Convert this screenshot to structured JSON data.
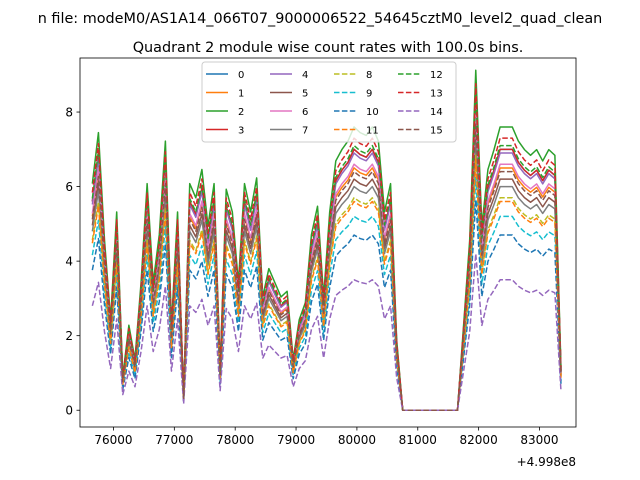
{
  "chart_data": {
    "type": "line",
    "suptitle": "n file: modeM0/AS1A14_066T07_9000006522_54645cztM0_level2_quad_clean",
    "title": "Quadrant 2 module wise count rates with 100.0s bins.",
    "xlabel": "",
    "ylabel": "",
    "x_offset_label": "+4.998e8",
    "xlim": [
      75450,
      83600
    ],
    "ylim": [
      -0.45,
      9.45
    ],
    "xticks": [
      76000,
      77000,
      78000,
      79000,
      80000,
      81000,
      82000,
      83000
    ],
    "xtick_labels": [
      "76000",
      "77000",
      "78000",
      "79000",
      "80000",
      "81000",
      "82000",
      "83000"
    ],
    "yticks": [
      0,
      2,
      4,
      6,
      8
    ],
    "ytick_labels": [
      "0",
      "2",
      "4",
      "6",
      "8"
    ],
    "legend_position": "top-center",
    "legend_columns": 4,
    "x": [
      75653,
      75753,
      75853,
      75953,
      76053,
      76153,
      76253,
      76353,
      76453,
      76553,
      76653,
      76753,
      76853,
      76953,
      77053,
      77153,
      77253,
      77353,
      77453,
      77553,
      77653,
      77753,
      77853,
      77953,
      78053,
      78153,
      78253,
      78353,
      78453,
      78553,
      78653,
      78753,
      78853,
      78953,
      79053,
      79153,
      79253,
      79353,
      79453,
      79553,
      79653,
      79753,
      79853,
      79953,
      80053,
      80153,
      80253,
      80353,
      80453,
      80553,
      80653,
      80753,
      80853,
      80953,
      81053,
      81153,
      81253,
      81353,
      81453,
      81553,
      81653,
      81753,
      81853,
      81953,
      82053,
      82153,
      82253,
      82353,
      82453,
      82553,
      82653,
      82753,
      82853,
      82953,
      83053,
      83153,
      83253,
      83353
    ],
    "base_profile": [
      0.8,
      0.98,
      0.6,
      0.32,
      0.7,
      0.12,
      0.3,
      0.18,
      0.45,
      0.8,
      0.45,
      0.62,
      0.95,
      0.3,
      0.7,
      0.05,
      0.8,
      0.75,
      0.85,
      0.65,
      0.8,
      0.15,
      0.78,
      0.7,
      0.45,
      0.8,
      0.7,
      0.82,
      0.4,
      0.5,
      0.45,
      0.4,
      0.42,
      0.18,
      0.32,
      0.38,
      0.62,
      0.72,
      0.4,
      0.7,
      0.88,
      0.92,
      0.95,
      1.0,
      0.98,
      0.97,
      1.0,
      0.95,
      0.7,
      0.8,
      0.25,
      0,
      0,
      0,
      0,
      0,
      0,
      0,
      0,
      0,
      0,
      0.3,
      0.6,
      1.2,
      0.65,
      0.85,
      0.92,
      1.0,
      1.0,
      1.0,
      0.95,
      0.92,
      0.9,
      0.92,
      0.88,
      0.92,
      0.9,
      0.15
    ],
    "series": [
      {
        "name": "0",
        "scale": 7.0,
        "color": "#1f77b4",
        "style": "solid"
      },
      {
        "name": "1",
        "scale": 6.5,
        "color": "#ff7f0e",
        "style": "solid"
      },
      {
        "name": "2",
        "scale": 7.6,
        "color": "#2ca02c",
        "style": "solid"
      },
      {
        "name": "3",
        "scale": 7.0,
        "color": "#d62728",
        "style": "solid"
      },
      {
        "name": "4",
        "scale": 6.9,
        "color": "#9467bd",
        "style": "solid"
      },
      {
        "name": "5",
        "scale": 6.2,
        "color": "#8c564b",
        "style": "solid"
      },
      {
        "name": "6",
        "scale": 6.6,
        "color": "#e377c2",
        "style": "solid"
      },
      {
        "name": "7",
        "scale": 6.0,
        "color": "#7f7f7f",
        "style": "solid"
      },
      {
        "name": "8",
        "scale": 5.7,
        "color": "#bcbd22",
        "style": "dashed"
      },
      {
        "name": "9",
        "scale": 5.2,
        "color": "#17becf",
        "style": "dashed"
      },
      {
        "name": "10",
        "scale": 4.7,
        "color": "#1f77b4",
        "style": "dashed"
      },
      {
        "name": "11",
        "scale": 5.6,
        "color": "#ff7f0e",
        "style": "dashed"
      },
      {
        "name": "12",
        "scale": 7.1,
        "color": "#2ca02c",
        "style": "dashed"
      },
      {
        "name": "13",
        "scale": 7.3,
        "color": "#d62728",
        "style": "dashed"
      },
      {
        "name": "14",
        "scale": 3.5,
        "color": "#9467bd",
        "style": "dashed"
      },
      {
        "name": "15",
        "scale": 6.4,
        "color": "#8c564b",
        "style": "dashed"
      }
    ]
  }
}
